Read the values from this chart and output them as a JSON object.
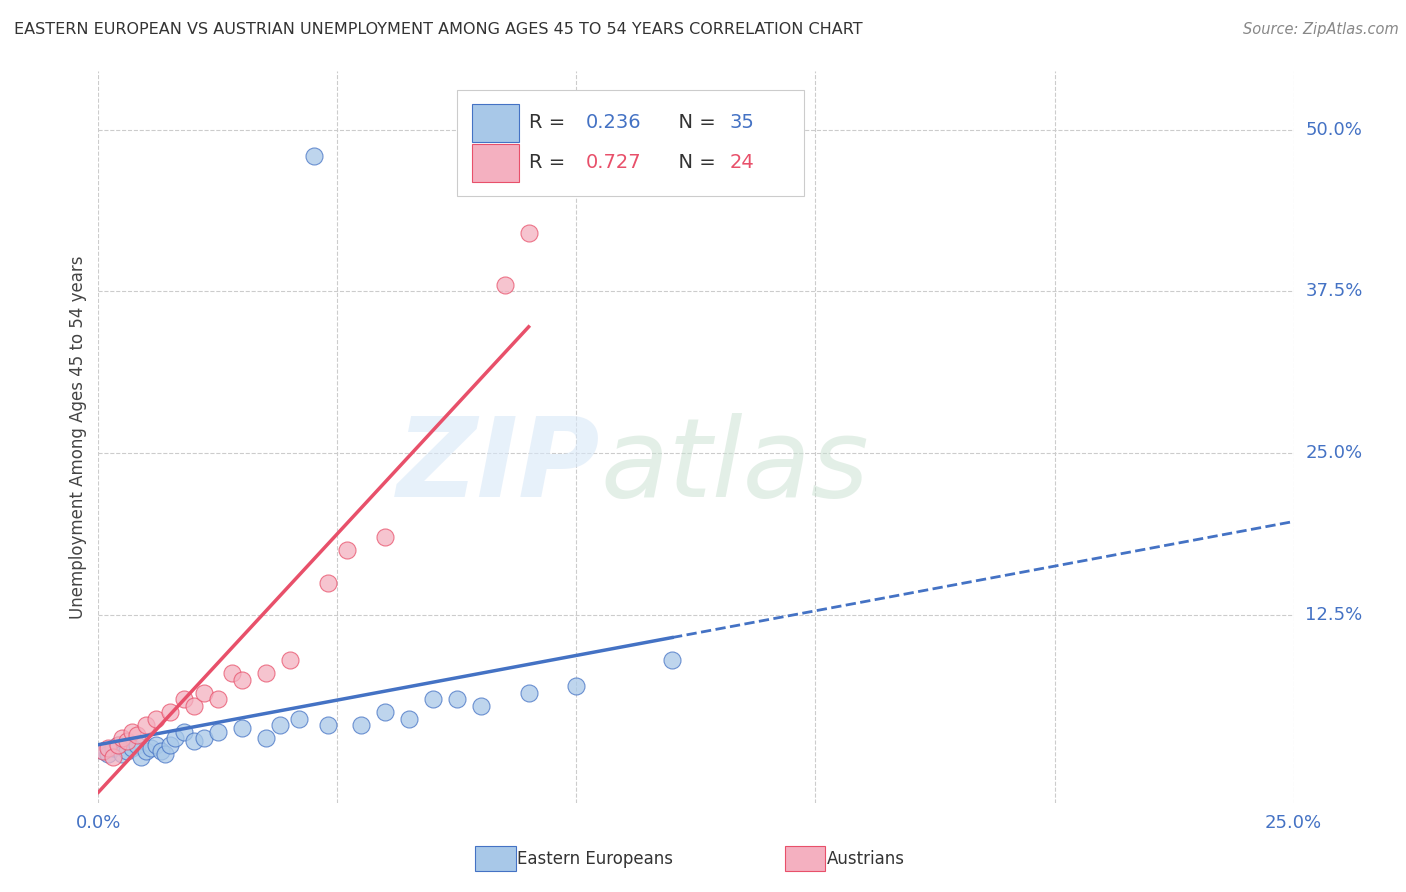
{
  "title": "EASTERN EUROPEAN VS AUSTRIAN UNEMPLOYMENT AMONG AGES 45 TO 54 YEARS CORRELATION CHART",
  "source": "Source: ZipAtlas.com",
  "ylabel_label": "Unemployment Among Ages 45 to 54 years",
  "r_eastern": 0.236,
  "n_eastern": 35,
  "r_austrian": 0.727,
  "n_austrian": 24,
  "blue_color": "#a8c8e8",
  "pink_color": "#f4b0c0",
  "blue_line_color": "#4472c4",
  "pink_line_color": "#e8506a",
  "eastern_x": [
    0.001,
    0.002,
    0.003,
    0.004,
    0.005,
    0.006,
    0.007,
    0.008,
    0.009,
    0.01,
    0.011,
    0.012,
    0.013,
    0.014,
    0.015,
    0.016,
    0.018,
    0.02,
    0.022,
    0.025,
    0.03,
    0.035,
    0.038,
    0.042,
    0.048,
    0.055,
    0.06,
    0.065,
    0.07,
    0.075,
    0.08,
    0.09,
    0.1,
    0.12,
    0.045
  ],
  "eastern_y": [
    0.02,
    0.018,
    0.022,
    0.025,
    0.018,
    0.02,
    0.022,
    0.025,
    0.015,
    0.02,
    0.022,
    0.025,
    0.02,
    0.018,
    0.025,
    0.03,
    0.035,
    0.028,
    0.03,
    0.035,
    0.038,
    0.03,
    0.04,
    0.045,
    0.04,
    0.04,
    0.05,
    0.045,
    0.06,
    0.06,
    0.055,
    0.065,
    0.07,
    0.09,
    0.48
  ],
  "austrian_x": [
    0.001,
    0.002,
    0.003,
    0.004,
    0.005,
    0.006,
    0.007,
    0.008,
    0.01,
    0.012,
    0.015,
    0.018,
    0.02,
    0.022,
    0.025,
    0.028,
    0.03,
    0.035,
    0.04,
    0.048,
    0.052,
    0.06,
    0.085,
    0.09
  ],
  "austrian_y": [
    0.02,
    0.022,
    0.015,
    0.025,
    0.03,
    0.028,
    0.035,
    0.032,
    0.04,
    0.045,
    0.05,
    0.06,
    0.055,
    0.065,
    0.06,
    0.08,
    0.075,
    0.08,
    0.09,
    0.15,
    0.175,
    0.185,
    0.38,
    0.42
  ],
  "xlim": [
    0.0,
    0.25
  ],
  "ylim": [
    -0.02,
    0.545
  ],
  "ytick_vals": [
    0.125,
    0.25,
    0.375,
    0.5
  ],
  "ytick_labels": [
    "12.5%",
    "25.0%",
    "37.5%",
    "50.0%"
  ],
  "xtick_vals": [
    0.0,
    0.25
  ],
  "xtick_labels": [
    "0.0%",
    "25.0%"
  ],
  "grid_x": [
    0.0,
    0.05,
    0.1,
    0.15,
    0.2,
    0.25
  ],
  "marker_size": 150
}
